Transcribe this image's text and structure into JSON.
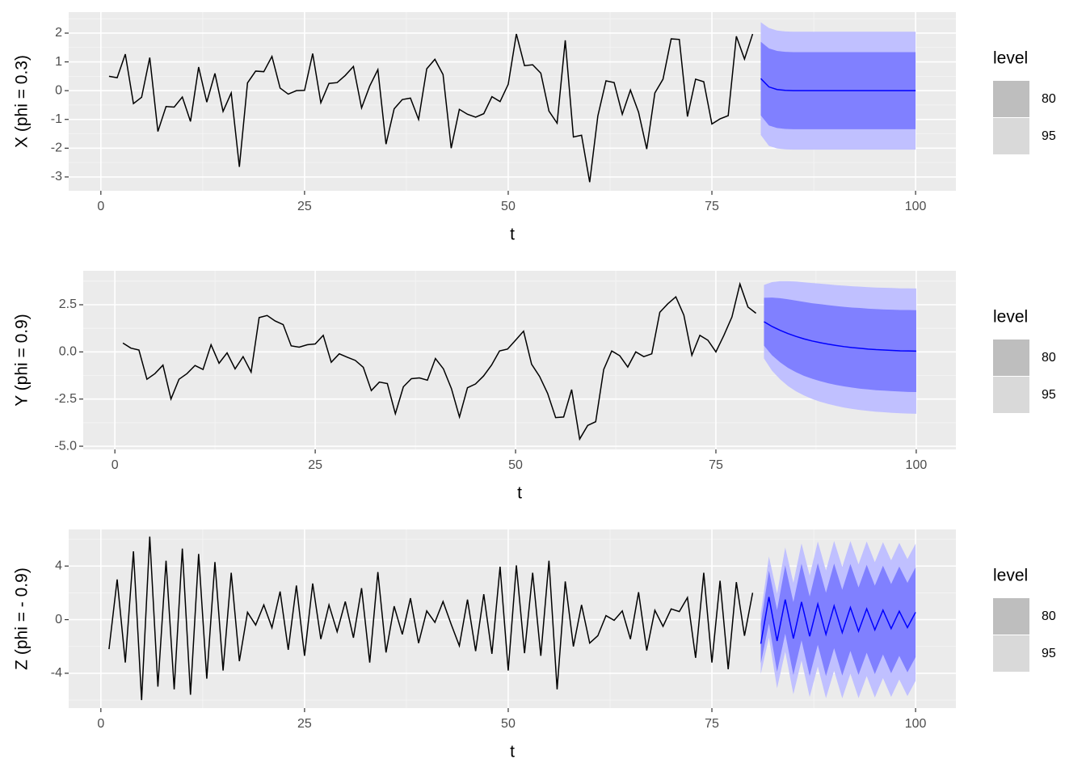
{
  "chart_data": [
    {
      "type": "line",
      "xlabel": "t",
      "ylabel": "X (phi = 0.3)",
      "legend_title": "level",
      "xlim": [
        -3.95,
        104.95
      ],
      "ylim": [
        -3.48,
        2.73
      ],
      "xticks": [
        0,
        25,
        50,
        75,
        100
      ],
      "yticks": [
        -3,
        -2,
        -1,
        0,
        1,
        2
      ],
      "grid": true,
      "x": [
        1,
        2,
        3,
        4,
        5,
        6,
        7,
        8,
        9,
        10,
        11,
        12,
        13,
        14,
        15,
        16,
        17,
        18,
        19,
        20,
        21,
        22,
        23,
        24,
        25,
        26,
        27,
        28,
        29,
        30,
        31,
        32,
        33,
        34,
        35,
        36,
        37,
        38,
        39,
        40,
        41,
        42,
        43,
        44,
        45,
        46,
        47,
        48,
        49,
        50,
        51,
        52,
        53,
        54,
        55,
        56,
        57,
        58,
        59,
        60,
        61,
        62,
        63,
        64,
        65,
        66,
        67,
        68,
        69,
        70,
        71,
        72,
        73,
        74,
        75,
        76,
        77,
        78,
        79,
        80
      ],
      "series": [
        {
          "color": "#000000",
          "values": [
            0.5,
            0.45,
            1.27,
            -0.45,
            -0.23,
            1.15,
            -1.42,
            -0.55,
            -0.57,
            -0.22,
            -1.07,
            0.82,
            -0.4,
            0.6,
            -0.72,
            -0.08,
            -2.65,
            0.27,
            0.68,
            0.66,
            1.19,
            0.09,
            -0.12,
            0,
            0.01,
            1.29,
            -0.42,
            0.25,
            0.28,
            0.53,
            0.84,
            -0.6,
            0.16,
            0.73,
            -1.86,
            -0.63,
            -0.31,
            -0.26,
            -1.0,
            0.76,
            1.09,
            0.56,
            -2.0,
            -0.65,
            -0.82,
            -0.92,
            -0.8,
            -0.21,
            -0.38,
            0.22,
            1.97,
            0.87,
            0.9,
            0.61,
            -0.71,
            -1.13,
            1.75,
            -1.61,
            -1.55,
            -3.18,
            -0.88,
            0.34,
            0.28,
            -0.82,
            0.02,
            -0.75,
            -2.03,
            -0.08,
            0.4,
            1.8,
            1.78,
            -0.9,
            0.4,
            0.31,
            -1.16,
            -0.98,
            -0.87,
            1.89,
            1.1,
            1.97
          ]
        }
      ],
      "forecast": {
        "x": [
          81,
          82,
          83,
          84,
          85,
          86,
          87,
          88,
          89,
          90,
          91,
          92,
          93,
          94,
          95,
          96,
          97,
          98,
          99,
          100
        ],
        "color": "#0000ff",
        "mean": [
          0.42,
          0.13,
          0.04,
          0.01,
          0,
          0,
          0,
          0,
          0,
          0,
          0,
          0,
          0,
          0,
          0,
          0,
          0,
          0,
          0,
          0
        ],
        "bands": [
          {
            "name": "95",
            "color": "#c0c0ff",
            "key_color": "#d9d9d9",
            "lower": [
              -1.54,
              -1.92,
              -2.01,
              -2.04,
              -2.05,
              -2.05,
              -2.05,
              -2.05,
              -2.05,
              -2.05,
              -2.05,
              -2.05,
              -2.05,
              -2.05,
              -2.05,
              -2.05,
              -2.05,
              -2.05,
              -2.05,
              -2.05
            ],
            "upper": [
              2.38,
              2.18,
              2.09,
              2.06,
              2.05,
              2.05,
              2.05,
              2.05,
              2.05,
              2.05,
              2.05,
              2.05,
              2.05,
              2.05,
              2.05,
              2.05,
              2.05,
              2.05,
              2.05,
              2.05
            ]
          },
          {
            "name": "80",
            "color": "#8080ff",
            "key_color": "#bebebe",
            "lower": [
              -0.86,
              -1.21,
              -1.3,
              -1.33,
              -1.34,
              -1.34,
              -1.34,
              -1.34,
              -1.34,
              -1.34,
              -1.34,
              -1.34,
              -1.34,
              -1.34,
              -1.34,
              -1.34,
              -1.34,
              -1.34,
              -1.34,
              -1.34
            ],
            "upper": [
              1.7,
              1.47,
              1.38,
              1.35,
              1.34,
              1.34,
              1.34,
              1.34,
              1.34,
              1.34,
              1.34,
              1.34,
              1.34,
              1.34,
              1.34,
              1.34,
              1.34,
              1.34,
              1.34,
              1.34
            ]
          }
        ]
      }
    },
    {
      "type": "line",
      "xlabel": "t",
      "ylabel": "Y (phi = 0.9)",
      "legend_title": "level",
      "xlim": [
        -3.95,
        104.95
      ],
      "ylim": [
        -5.17,
        4.3
      ],
      "xticks": [
        0,
        25,
        50,
        75,
        100
      ],
      "yticks": [
        {
          "value": -5,
          "label": "-5.0"
        },
        {
          "value": -2.5,
          "label": "-2.5"
        },
        {
          "value": 0,
          "label": "0.0"
        },
        2.5
      ],
      "grid": true,
      "x": [
        1,
        2,
        3,
        4,
        5,
        6,
        7,
        8,
        9,
        10,
        11,
        12,
        13,
        14,
        15,
        16,
        17,
        18,
        19,
        20,
        21,
        22,
        23,
        24,
        25,
        26,
        27,
        28,
        29,
        30,
        31,
        32,
        33,
        34,
        35,
        36,
        37,
        38,
        39,
        40,
        41,
        42,
        43,
        44,
        45,
        46,
        47,
        48,
        49,
        50,
        51,
        52,
        53,
        54,
        55,
        56,
        57,
        58,
        59,
        60,
        61,
        62,
        63,
        64,
        65,
        66,
        67,
        68,
        69,
        70,
        71,
        72,
        73,
        74,
        75,
        76,
        77,
        78,
        79,
        80
      ],
      "series": [
        {
          "color": "#000000",
          "values": [
            0.47,
            0.2,
            0.1,
            -1.45,
            -1.15,
            -0.7,
            -2.5,
            -1.45,
            -1.15,
            -0.72,
            -0.93,
            0.38,
            -0.6,
            -0.05,
            -0.9,
            -0.25,
            -1.07,
            1.82,
            1.93,
            1.64,
            1.45,
            0.32,
            0.25,
            0.38,
            0.42,
            0.88,
            -0.55,
            -0.1,
            -0.28,
            -0.45,
            -0.82,
            -2.05,
            -1.6,
            -1.68,
            -3.28,
            -1.85,
            -1.42,
            -1.38,
            -1.5,
            -0.35,
            -0.9,
            -1.95,
            -3.45,
            -1.9,
            -1.7,
            -1.28,
            -0.7,
            0.05,
            0.15,
            0.62,
            1.1,
            -0.65,
            -1.3,
            -2.2,
            -3.48,
            -3.45,
            -2.0,
            -4.62,
            -3.9,
            -3.7,
            -0.93,
            0.05,
            -0.2,
            -0.8,
            0,
            -0.25,
            -0.1,
            2.1,
            2.55,
            2.92,
            1.95,
            -0.18,
            0.88,
            0.62,
            0,
            0.88,
            1.85,
            3.6,
            2.38,
            2.05
          ]
        }
      ],
      "forecast": {
        "x": [
          81,
          82,
          83,
          84,
          85,
          86,
          87,
          88,
          89,
          90,
          91,
          92,
          93,
          94,
          95,
          96,
          97,
          98,
          99,
          100
        ],
        "color": "#0000ff",
        "mean": [
          1.6,
          1.35,
          1.15,
          0.97,
          0.82,
          0.69,
          0.58,
          0.49,
          0.41,
          0.34,
          0.28,
          0.23,
          0.19,
          0.15,
          0.12,
          0.1,
          0.08,
          0.06,
          0.05,
          0.04
        ],
        "bands": [
          {
            "name": "95",
            "color": "#c0c0ff",
            "key_color": "#d9d9d9",
            "lower": [
              -0.35,
              -1.0,
              -1.45,
              -1.81,
              -2.09,
              -2.31,
              -2.49,
              -2.64,
              -2.76,
              -2.86,
              -2.95,
              -3.02,
              -3.08,
              -3.13,
              -3.17,
              -3.2,
              -3.23,
              -3.25,
              -3.27,
              -3.28
            ],
            "upper": [
              3.55,
              3.7,
              3.75,
              3.75,
              3.73,
              3.69,
              3.65,
              3.62,
              3.58,
              3.54,
              3.51,
              3.48,
              3.46,
              3.43,
              3.41,
              3.4,
              3.39,
              3.37,
              3.37,
              3.36
            ]
          },
          {
            "name": "80",
            "color": "#8080ff",
            "key_color": "#bebebe",
            "lower": [
              0.33,
              -0.18,
              -0.55,
              -0.85,
              -1.08,
              -1.27,
              -1.42,
              -1.55,
              -1.66,
              -1.75,
              -1.83,
              -1.89,
              -1.95,
              -1.99,
              -2.03,
              -2.05,
              -2.08,
              -2.1,
              -2.12,
              -2.13
            ],
            "upper": [
              2.87,
              2.88,
              2.85,
              2.79,
              2.72,
              2.65,
              2.58,
              2.53,
              2.48,
              2.43,
              2.39,
              2.35,
              2.33,
              2.29,
              2.27,
              2.25,
              2.24,
              2.22,
              2.22,
              2.21
            ]
          }
        ]
      }
    },
    {
      "type": "line",
      "xlabel": "t",
      "ylabel": "Z (phi = - 0.9)",
      "legend_title": "level",
      "xlim": [
        -3.95,
        104.95
      ],
      "ylim": [
        -6.6,
        6.73
      ],
      "xticks": [
        0,
        25,
        50,
        75,
        100
      ],
      "yticks": [
        -4,
        0,
        4
      ],
      "grid": true,
      "x": [
        1,
        2,
        3,
        4,
        5,
        6,
        7,
        8,
        9,
        10,
        11,
        12,
        13,
        14,
        15,
        16,
        17,
        18,
        19,
        20,
        21,
        22,
        23,
        24,
        25,
        26,
        27,
        28,
        29,
        30,
        31,
        32,
        33,
        34,
        35,
        36,
        37,
        38,
        39,
        40,
        41,
        42,
        43,
        44,
        45,
        46,
        47,
        48,
        49,
        50,
        51,
        52,
        53,
        54,
        55,
        56,
        57,
        58,
        59,
        60,
        61,
        62,
        63,
        64,
        65,
        66,
        67,
        68,
        69,
        70,
        71,
        72,
        73,
        74,
        75,
        76,
        77,
        78,
        79,
        80
      ],
      "series": [
        {
          "color": "#000000",
          "values": [
            -2.2,
            3.0,
            -3.2,
            5.1,
            -6.0,
            6.2,
            -5.0,
            4.4,
            -5.2,
            5.3,
            -5.6,
            4.9,
            -4.4,
            4.3,
            -3.8,
            3.5,
            -3.1,
            0.55,
            -0.4,
            1.1,
            -0.6,
            2.1,
            -2.25,
            2.55,
            -2.7,
            2.7,
            -1.45,
            1.1,
            -0.9,
            1.35,
            -1.35,
            2.35,
            -3.2,
            3.55,
            -2.45,
            1.0,
            -1.1,
            1.6,
            -1.75,
            0.65,
            -0.2,
            1.35,
            -0.35,
            -1.95,
            1.5,
            -2.35,
            1.9,
            -2.55,
            3.95,
            -3.8,
            4.05,
            -2.5,
            3.5,
            -2.7,
            4.4,
            -5.2,
            2.85,
            -2.0,
            1.1,
            -1.75,
            -1.2,
            0.3,
            -0.05,
            0.65,
            -1.45,
            2.05,
            -2.3,
            0.7,
            -0.5,
            0.8,
            0.6,
            1.65,
            -2.85,
            3.5,
            -3.2,
            2.9,
            -3.7,
            2.8,
            -1.2,
            2.0
          ]
        }
      ],
      "forecast": {
        "x": [
          81,
          82,
          83,
          84,
          85,
          86,
          87,
          88,
          89,
          90,
          91,
          92,
          93,
          94,
          95,
          96,
          97,
          98,
          99,
          100
        ],
        "color": "#0000ff",
        "mean": [
          -1.8,
          1.69,
          -1.59,
          1.5,
          -1.41,
          1.32,
          -1.24,
          1.17,
          -1.1,
          1.03,
          -0.97,
          0.91,
          -0.86,
          0.81,
          -0.76,
          0.71,
          -0.67,
          0.63,
          -0.59,
          0.55
        ],
        "bands": [
          {
            "name": "95",
            "color": "#c0c0ff",
            "key_color": "#d9d9d9",
            "lower": [
              -4.05,
              -1.34,
              -5.12,
              -2.39,
              -5.57,
              -3.05,
              -5.77,
              -3.49,
              -5.86,
              -3.81,
              -5.87,
              -4.04,
              -5.85,
              -4.21,
              -5.81,
              -4.36,
              -5.76,
              -4.47,
              -5.7,
              -4.57
            ],
            "upper": [
              0.45,
              4.72,
              1.94,
              5.39,
              2.75,
              5.69,
              3.29,
              5.83,
              3.66,
              5.87,
              3.93,
              5.86,
              4.13,
              5.83,
              4.29,
              5.78,
              4.42,
              5.73,
              4.52,
              5.67
            ]
          },
          {
            "name": "80",
            "color": "#8080ff",
            "key_color": "#bebebe",
            "lower": [
              -3.27,
              -0.29,
              -3.9,
              -1.04,
              -4.13,
              -1.54,
              -4.2,
              -1.87,
              -4.21,
              -2.13,
              -4.17,
              -2.33,
              -4.12,
              -2.47,
              -4.06,
              -2.6,
              -4.0,
              -2.7,
              -3.93,
              -2.8
            ],
            "upper": [
              -0.33,
              3.67,
              0.72,
              4.04,
              1.31,
              4.18,
              1.72,
              4.21,
              2.01,
              4.19,
              2.23,
              4.15,
              2.4,
              4.09,
              2.54,
              4.02,
              2.66,
              3.96,
              2.75,
              3.9
            ]
          }
        ]
      }
    }
  ]
}
